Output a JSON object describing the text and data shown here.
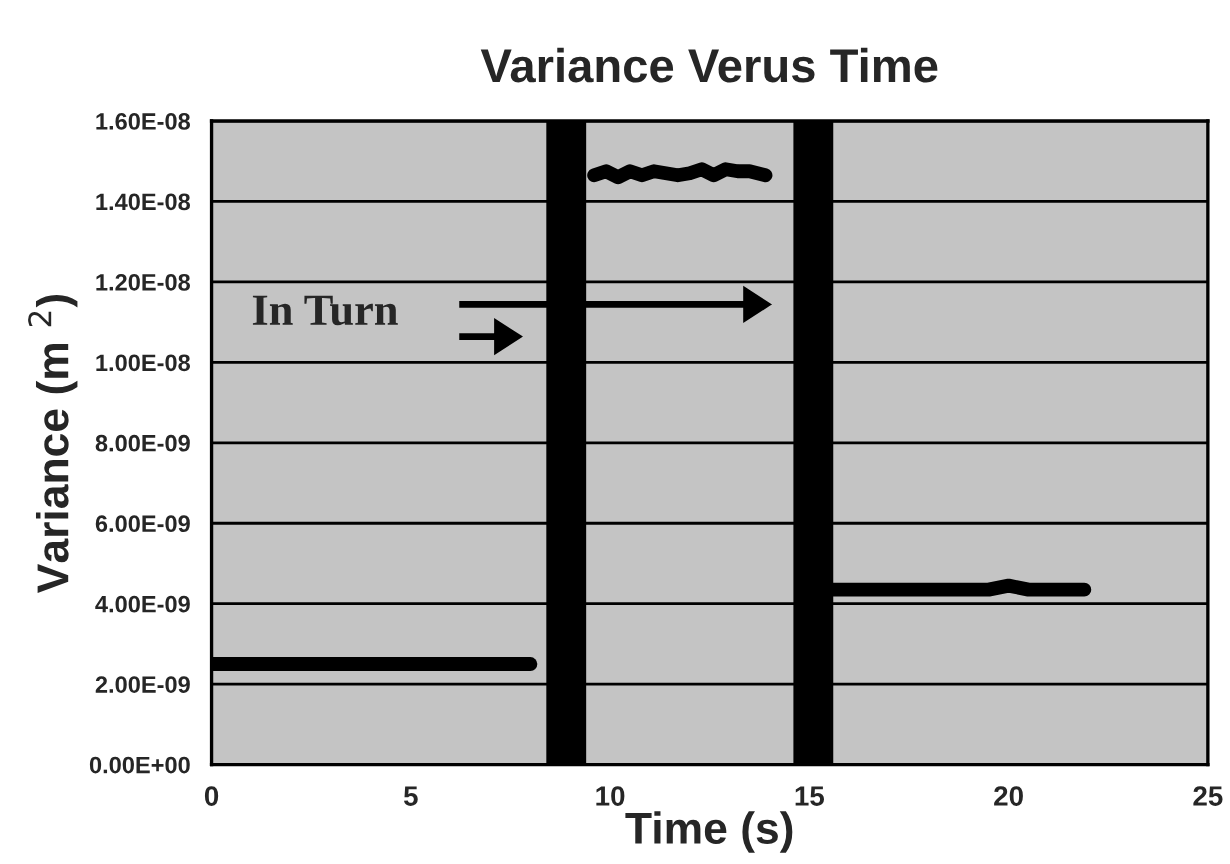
{
  "chart_data": {
    "type": "line",
    "title": "Variance Verus Time",
    "xlabel": "Time (s)",
    "ylabel": "Variance (m $^{2}$)",
    "series": [
      {
        "color": "#000000",
        "x": [
          0,
          8.0
        ],
        "values": [
          2.5e-09,
          2.5e-09
        ]
      },
      {
        "color": "#000000",
        "x": [
          9.6,
          9.9,
          10.2,
          10.5,
          10.8,
          11.1,
          11.4,
          11.7,
          12.0,
          12.3,
          12.6,
          12.9,
          13.2,
          13.5,
          13.9
        ],
        "values": [
          1.465e-08,
          1.475e-08,
          1.46e-08,
          1.475e-08,
          1.465e-08,
          1.475e-08,
          1.47e-08,
          1.465e-08,
          1.47e-08,
          1.48e-08,
          1.465e-08,
          1.48e-08,
          1.475e-08,
          1.475e-08,
          1.465e-08
        ]
      },
      {
        "color": "#000000",
        "x": [
          15.6,
          19.5,
          20.0,
          20.5,
          21.9
        ],
        "values": [
          4.35e-09,
          4.35e-09,
          4.45e-09,
          4.35e-09,
          4.35e-09
        ]
      }
    ],
    "bands": [
      {
        "axis": "x",
        "from": 8.4,
        "to": 9.4,
        "color": "#000000"
      },
      {
        "axis": "x",
        "from": 14.6,
        "to": 15.6,
        "color": "#000000"
      }
    ],
    "annotations": [
      "In Turn"
    ],
    "xlim": [
      0,
      25
    ],
    "xticks": [
      0,
      5,
      10,
      15,
      20,
      25
    ],
    "ylim": [
      0,
      1.6e-08
    ],
    "yticks": [
      {
        "value": 0,
        "label": "0.00E+00"
      },
      {
        "value": 2e-09,
        "label": "2.00E-09"
      },
      {
        "value": 4e-09,
        "label": "4.00E-09"
      },
      {
        "value": 6e-09,
        "label": "6.00E-09"
      },
      {
        "value": 8e-09,
        "label": "8.00E-09"
      },
      {
        "value": 1e-08,
        "label": "1.00E-08"
      },
      {
        "value": 1.2e-08,
        "label": "1.20E-08"
      },
      {
        "value": 1.4e-08,
        "label": "1.40E-08"
      },
      {
        "value": 1.6e-08,
        "label": "1.60E-08"
      }
    ],
    "grid": "y",
    "legend": false,
    "marker": "none",
    "line_style": "solid"
  }
}
